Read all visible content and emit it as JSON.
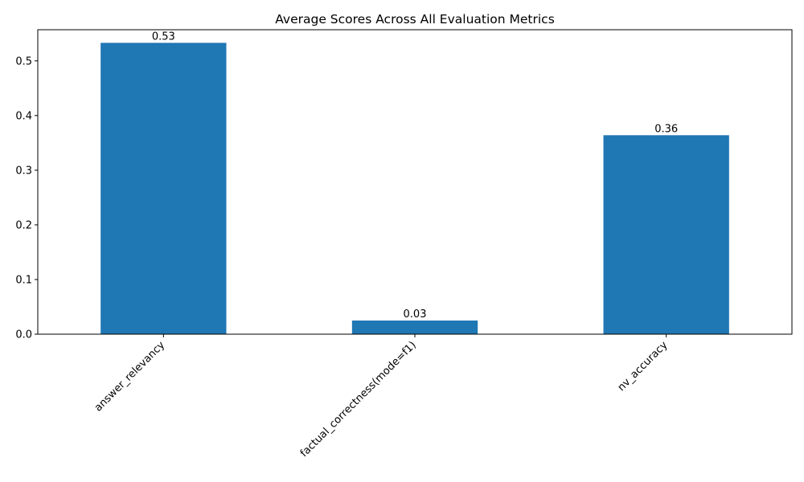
{
  "chart_data": {
    "type": "bar",
    "title": "Average Scores Across All Evaluation Metrics",
    "xlabel": "",
    "ylabel": "",
    "categories": [
      "answer_relevancy",
      "factual_correctness(mode=f1)",
      "nv_accuracy"
    ],
    "values": [
      0.533,
      0.025,
      0.364
    ],
    "data_labels": [
      "0.53",
      "0.03",
      "0.36"
    ],
    "ylim": [
      0,
      0.557
    ],
    "yticks": [
      0.0,
      0.1,
      0.2,
      0.3,
      0.4,
      0.5
    ],
    "ytick_labels": [
      "0.0",
      "0.1",
      "0.2",
      "0.3",
      "0.4",
      "0.5"
    ],
    "bar_color": "#1f77b4",
    "grid": false,
    "legend": "none"
  }
}
